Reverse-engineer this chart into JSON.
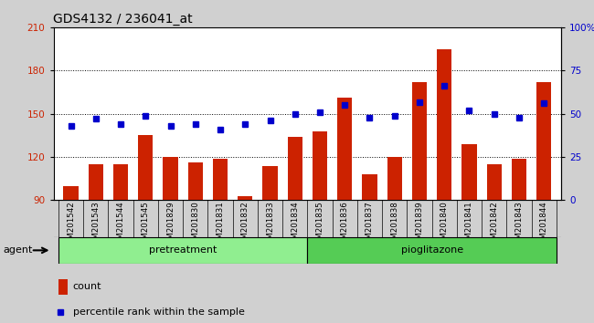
{
  "title": "GDS4132 / 236041_at",
  "samples": [
    "GSM201542",
    "GSM201543",
    "GSM201544",
    "GSM201545",
    "GSM201829",
    "GSM201830",
    "GSM201831",
    "GSM201832",
    "GSM201833",
    "GSM201834",
    "GSM201835",
    "GSM201836",
    "GSM201837",
    "GSM201838",
    "GSM201839",
    "GSM201840",
    "GSM201841",
    "GSM201842",
    "GSM201843",
    "GSM201844"
  ],
  "counts": [
    100,
    115,
    115,
    135,
    120,
    116,
    119,
    93,
    114,
    134,
    138,
    161,
    108,
    120,
    172,
    195,
    129,
    115,
    119,
    172
  ],
  "percentiles": [
    43,
    47,
    44,
    49,
    43,
    44,
    41,
    44,
    46,
    50,
    51,
    55,
    48,
    49,
    57,
    66,
    52,
    50,
    48,
    56
  ],
  "group_labels": [
    "pretreatment",
    "pioglitazone"
  ],
  "group_colors": [
    "#90EE90",
    "#55CC55"
  ],
  "ylim_left": [
    90,
    210
  ],
  "ylim_right": [
    0,
    100
  ],
  "yticks_left": [
    90,
    120,
    150,
    180,
    210
  ],
  "yticks_right": [
    0,
    25,
    50,
    75,
    100
  ],
  "bar_color": "#CC2200",
  "dot_color": "#0000CC",
  "background_color": "#D0D0D0",
  "plot_bg_color": "#FFFFFF",
  "title_fontsize": 10,
  "tick_fontsize": 7.5,
  "legend_count_label": "count",
  "legend_pct_label": "percentile rank within the sample",
  "agent_label": "agent"
}
